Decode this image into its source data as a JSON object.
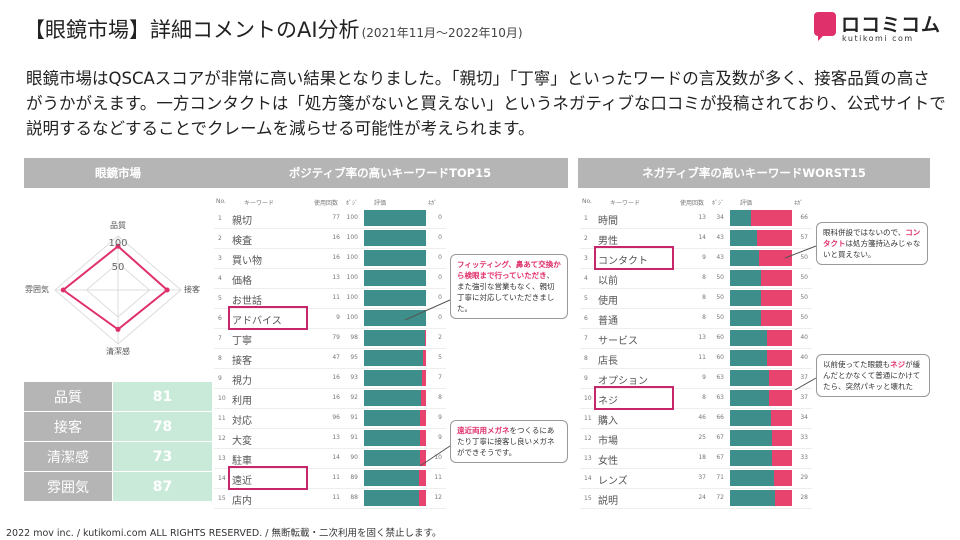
{
  "title": {
    "main": "【眼鏡市場】詳細コメントのAI分析",
    "period": "(2021年11月〜2022年10月)"
  },
  "logo": {
    "name": "ロコミコム",
    "sub": "kutikomi com"
  },
  "summary": "眼鏡市場はQSCAスコアが非常に高い結果となりました。「親切」「丁寧」といったワードの言及数が多く、接客品質の高さがうかがえます。一方コンタクトは「処方箋がないと買えない」というネガティブな口コミが投稿されており、公式サイトで説明するなどすることでクレームを減らせる可能性が考えられます。",
  "panel_left": {
    "header": "眼鏡市場",
    "radar_labels": {
      "top": "品質",
      "right": "接客",
      "bottom": "清潔感",
      "left": "雰囲気"
    },
    "radar_ticks": [
      "100",
      "50"
    ],
    "scores": [
      {
        "label": "品質",
        "value": 81
      },
      {
        "label": "接客",
        "value": 78
      },
      {
        "label": "清潔感",
        "value": 73
      },
      {
        "label": "雰囲気",
        "value": 87
      }
    ]
  },
  "panel_pos": {
    "header": "ポジティブ率の高いキーワードTOP15",
    "columns": [
      "No.",
      "キーワード",
      "使用回数",
      "ﾎﾟｼﾞ",
      "評価",
      "ﾈｶﾞ"
    ],
    "rows": [
      {
        "no": "1",
        "kw": "親切",
        "count": "77",
        "pos": "100",
        "neg": "0"
      },
      {
        "no": "2",
        "kw": "検査",
        "count": "16",
        "pos": "100",
        "neg": "0"
      },
      {
        "no": "3",
        "kw": "買い物",
        "count": "16",
        "pos": "100",
        "neg": "0"
      },
      {
        "no": "4",
        "kw": "価格",
        "count": "13",
        "pos": "100",
        "neg": "0"
      },
      {
        "no": "5",
        "kw": "お世話",
        "count": "11",
        "pos": "100",
        "neg": "0"
      },
      {
        "no": "6",
        "kw": "アドバイス",
        "count": "9",
        "pos": "100",
        "neg": "0"
      },
      {
        "no": "7",
        "kw": "丁寧",
        "count": "79",
        "pos": "98",
        "neg": "2"
      },
      {
        "no": "8",
        "kw": "接客",
        "count": "47",
        "pos": "95",
        "neg": "5"
      },
      {
        "no": "9",
        "kw": "視力",
        "count": "16",
        "pos": "93",
        "neg": "7"
      },
      {
        "no": "10",
        "kw": "利用",
        "count": "16",
        "pos": "92",
        "neg": "8"
      },
      {
        "no": "11",
        "kw": "対応",
        "count": "96",
        "pos": "91",
        "neg": "9"
      },
      {
        "no": "12",
        "kw": "大変",
        "count": "13",
        "pos": "91",
        "neg": "9"
      },
      {
        "no": "13",
        "kw": "駐車",
        "count": "14",
        "pos": "90",
        "neg": "10"
      },
      {
        "no": "14",
        "kw": "遠近",
        "count": "11",
        "pos": "89",
        "neg": "11"
      },
      {
        "no": "15",
        "kw": "店内",
        "count": "11",
        "pos": "88",
        "neg": "12"
      }
    ],
    "callout1": {
      "highlight": "フィッティング、鼻あて交換から検眼まで行っていただき",
      "rest": "、また強引な営業もなく、親切丁寧に対応していただきました。"
    },
    "callout2": {
      "highlight": "遠近両用メガネ",
      "rest": "をつくるにあたり丁寧に接客し良いメガネができそうです。"
    }
  },
  "panel_neg": {
    "header": "ネガティブ率の高いキーワードWORST15",
    "columns": [
      "No.",
      "キーワード",
      "使用回数",
      "ﾎﾟｼﾞ",
      "評価",
      "ﾈｶﾞ"
    ],
    "rows": [
      {
        "no": "1",
        "kw": "時間",
        "count": "13",
        "pos": "34",
        "neg": "66"
      },
      {
        "no": "2",
        "kw": "男性",
        "count": "14",
        "pos": "43",
        "neg": "57"
      },
      {
        "no": "3",
        "kw": "コンタクト",
        "count": "9",
        "pos": "43",
        "neg": "50"
      },
      {
        "no": "4",
        "kw": "以前",
        "count": "8",
        "pos": "50",
        "neg": "50"
      },
      {
        "no": "5",
        "kw": "使用",
        "count": "8",
        "pos": "50",
        "neg": "50"
      },
      {
        "no": "6",
        "kw": "普通",
        "count": "8",
        "pos": "50",
        "neg": "50"
      },
      {
        "no": "7",
        "kw": "サービス",
        "count": "13",
        "pos": "60",
        "neg": "40"
      },
      {
        "no": "8",
        "kw": "店長",
        "count": "11",
        "pos": "60",
        "neg": "40"
      },
      {
        "no": "9",
        "kw": "オプション",
        "count": "9",
        "pos": "63",
        "neg": "37"
      },
      {
        "no": "10",
        "kw": "ネジ",
        "count": "8",
        "pos": "63",
        "neg": "37"
      },
      {
        "no": "11",
        "kw": "購入",
        "count": "46",
        "pos": "66",
        "neg": "34"
      },
      {
        "no": "12",
        "kw": "市場",
        "count": "25",
        "pos": "67",
        "neg": "33"
      },
      {
        "no": "13",
        "kw": "女性",
        "count": "18",
        "pos": "67",
        "neg": "33"
      },
      {
        "no": "14",
        "kw": "レンズ",
        "count": "37",
        "pos": "71",
        "neg": "29"
      },
      {
        "no": "15",
        "kw": "説明",
        "count": "24",
        "pos": "72",
        "neg": "28"
      }
    ],
    "callout1": {
      "pre": "眼科併設ではないので、",
      "highlight": "コンタクト",
      "rest": "は処方箋持込みじゃないと買えない。"
    },
    "callout2": {
      "pre": "以前使ってた眼鏡も",
      "highlight": "ネジ",
      "rest": "が緩んだとかなくて普通にかけてたら、突然パキッと壊れた"
    }
  },
  "footer": "2022 mov inc. / kutikomi.com ALL RIGHTS RESERVED. / 無断転載・二次利用を固く禁止します。",
  "colors": {
    "positive": "#3e8f8b",
    "negative": "#e8426f",
    "accent": "#c8266a",
    "header_bg": "#b5b5b5",
    "score_bg": "#c9ead9"
  }
}
